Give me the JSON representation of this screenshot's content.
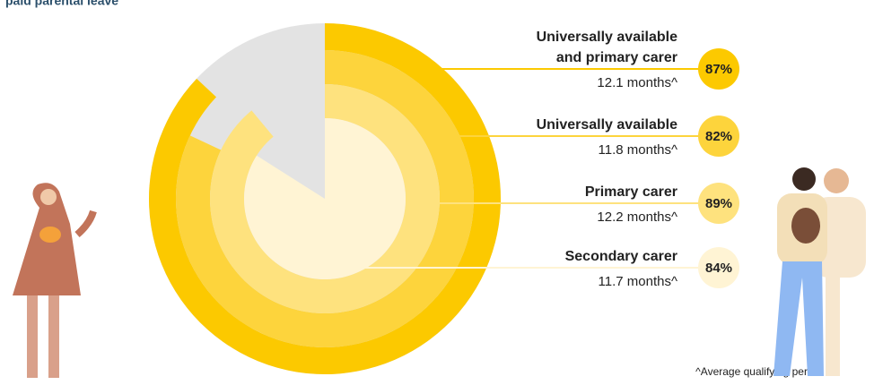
{
  "chart_data": {
    "type": "radial-bar",
    "title": "paid parental leave",
    "ylim": [
      0,
      100
    ],
    "background_color": "#e3e3e3",
    "series": [
      {
        "name": [
          "Universally available",
          "and primary carer"
        ],
        "detail": "12.1 months^",
        "value": 87,
        "value_label": "87%",
        "color": "#fcc900"
      },
      {
        "name": [
          "Universally available"
        ],
        "detail": "11.8 months^",
        "value": 82,
        "value_label": "82%",
        "color": "#fdd43c"
      },
      {
        "name": [
          "Primary carer"
        ],
        "detail": "12.2 months^",
        "value": 89,
        "value_label": "89%",
        "color": "#fee27e"
      },
      {
        "name": [
          "Secondary carer"
        ],
        "detail": "11.7 months^",
        "value": 84,
        "value_label": "84%",
        "color": "#fff4d4"
      }
    ],
    "footnote": "^Average qualifying period"
  }
}
